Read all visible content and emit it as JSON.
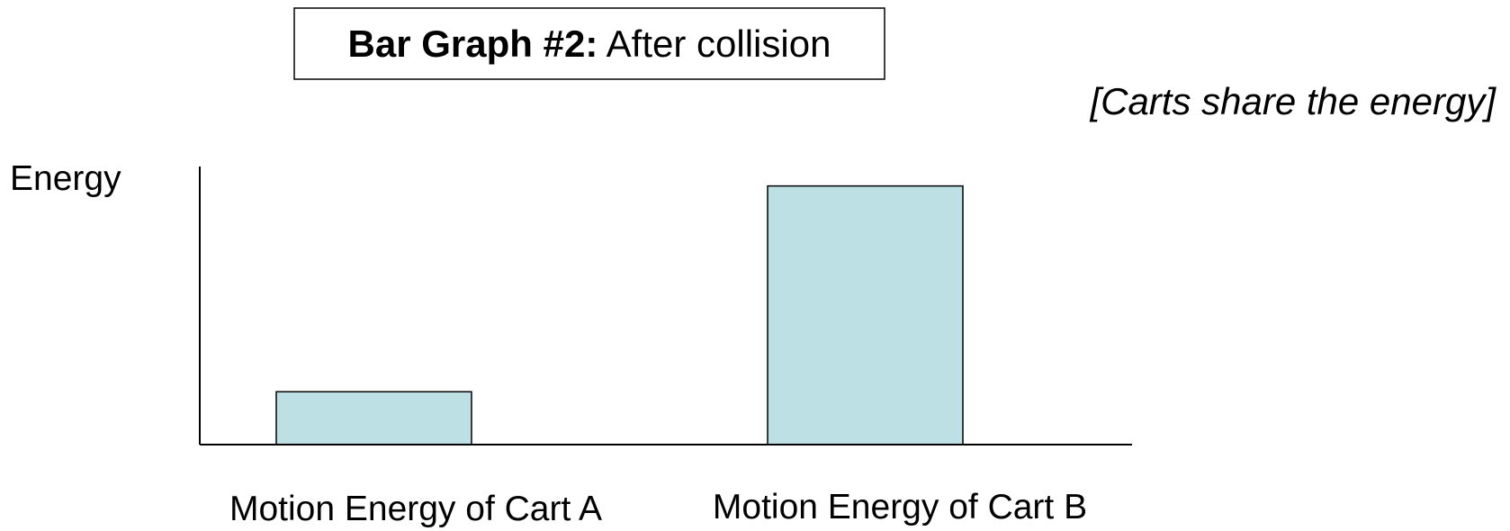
{
  "chart_data": {
    "type": "bar",
    "title": [
      "Bar Graph #2:",
      "After collision"
    ],
    "annotation": "[Carts share the energy]",
    "y_label": "Energy",
    "categories": [
      "Motion Energy of Cart A",
      "Motion Energy of Cart B"
    ],
    "values": [
      19,
      93
    ],
    "color": "#bce0e3",
    "ylim": [
      0,
      100
    ]
  }
}
